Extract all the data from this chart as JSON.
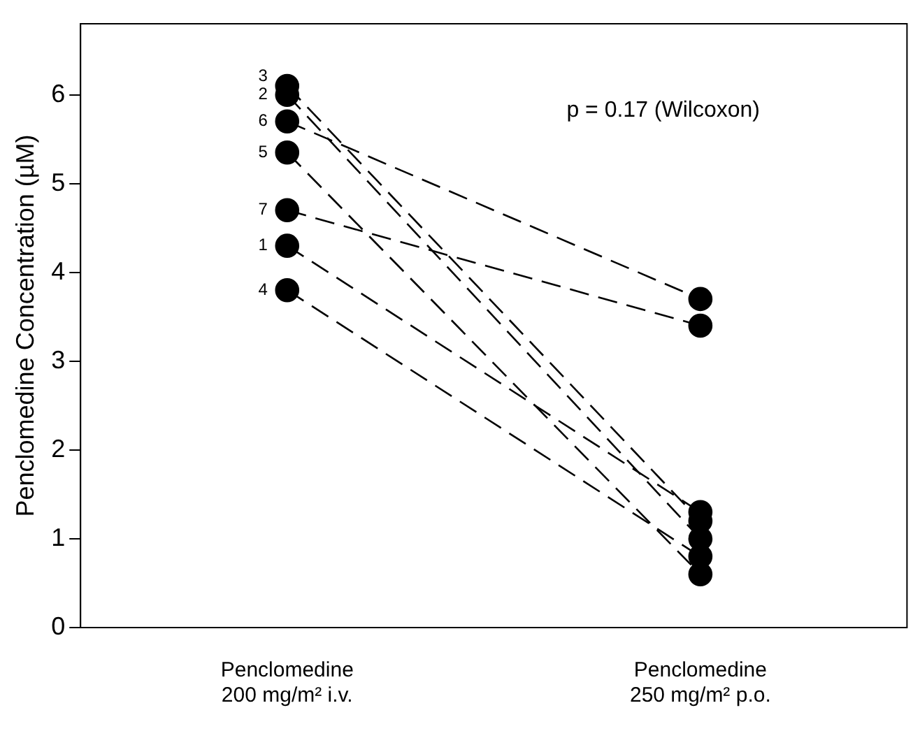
{
  "chart_data": {
    "type": "line",
    "ylabel": "Penclomedine Concentration (µM)",
    "categories": [
      "Penclomedine\n200 mg/m² i.v.",
      "Penclomedine\n250 mg/m² p.o."
    ],
    "ylim": [
      0,
      6.8
    ],
    "yticks": [
      0,
      1,
      2,
      3,
      4,
      5,
      6
    ],
    "grid": false,
    "legend": false,
    "marker": "circle",
    "line_style": "dashed",
    "annotations": [
      "p = 0.17 (Wilcoxon)"
    ],
    "series": [
      {
        "name": "3",
        "color": "#000000",
        "values": [
          6.1,
          1.2
        ]
      },
      {
        "name": "2",
        "color": "#000000",
        "values": [
          6.0,
          1.0
        ]
      },
      {
        "name": "6",
        "color": "#000000",
        "values": [
          5.7,
          3.7
        ]
      },
      {
        "name": "5",
        "color": "#000000",
        "values": [
          5.35,
          0.6
        ]
      },
      {
        "name": "7",
        "color": "#000000",
        "values": [
          4.7,
          3.4
        ]
      },
      {
        "name": "1",
        "color": "#000000",
        "values": [
          4.3,
          1.3
        ]
      },
      {
        "name": "4",
        "color": "#000000",
        "values": [
          3.8,
          0.8
        ]
      }
    ]
  }
}
